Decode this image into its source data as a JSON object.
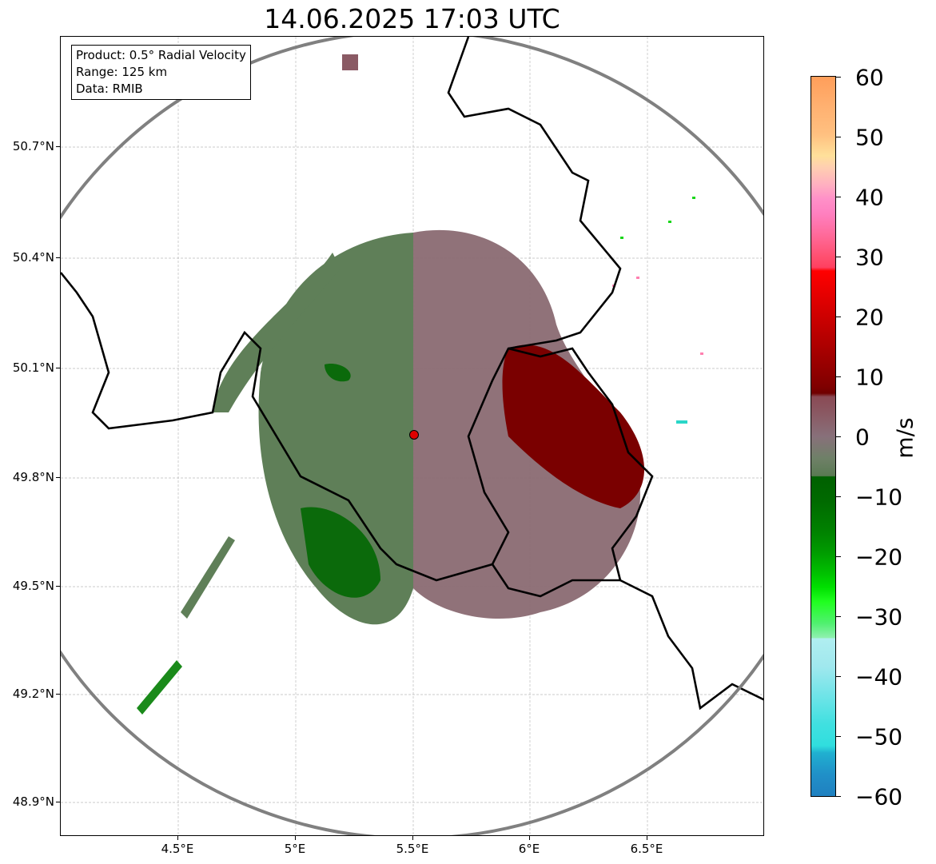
{
  "title": "14.06.2025 17:03 UTC",
  "info": {
    "product": "Product: 0.5° Radial Velocity",
    "range": "Range: 125 km",
    "data": "Data: RMIB"
  },
  "lat_ticks": [
    "50.7°N",
    "50.4°N",
    "50.1°N",
    "49.8°N",
    "49.5°N",
    "49.2°N",
    "48.9°N"
  ],
  "lon_ticks": [
    "4.5°E",
    "5°E",
    "5.5°E",
    "6°E",
    "6.5°E"
  ],
  "colorbar": {
    "unit": "m/s",
    "ticks": [
      "60",
      "50",
      "40",
      "30",
      "20",
      "10",
      "0",
      "−10",
      "−20",
      "−30",
      "−40",
      "−50",
      "−60"
    ],
    "range": [
      -60,
      60
    ]
  },
  "colors": {
    "approaching": "#5c7f55",
    "receding": "#8a5a64",
    "strong_receding": "#7a0000",
    "strong_approaching": "#0a6a0a",
    "border": "#000000",
    "range_ring": "#808080",
    "radar_site": "#e00000"
  }
}
